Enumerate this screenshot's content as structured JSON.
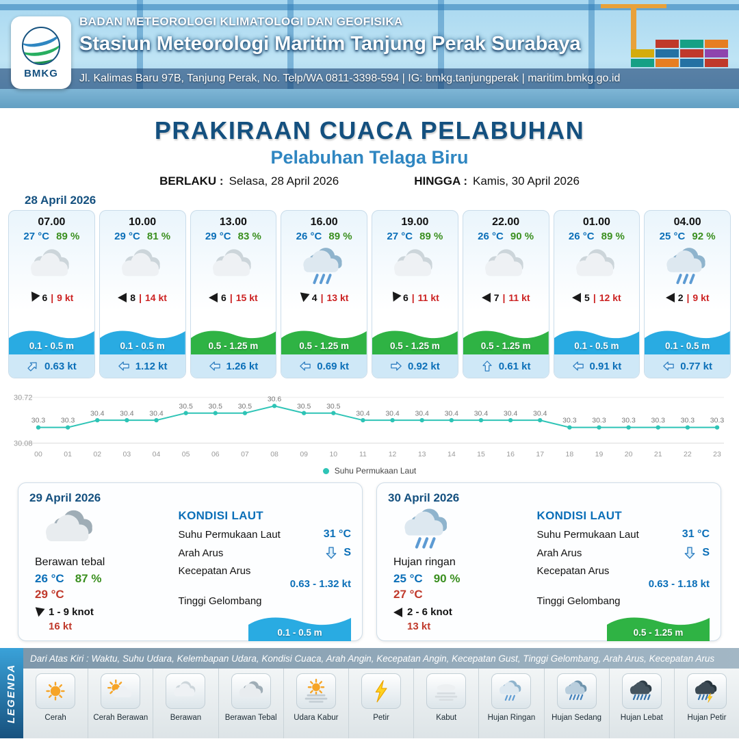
{
  "header": {
    "logo_label": "BMKG",
    "org": "BADAN METEOROLOGI KLIMATOLOGI DAN GEOFISIKA",
    "station": "Stasiun Meteorologi Maritim Tanjung Perak Surabaya",
    "address": "Jl. Kalimas Baru 97B, Tanjung Perak, No. Telp/WA 0811-3398-594 | IG: bmkg.tanjungperak | maritim.bmkg.go.id"
  },
  "title": {
    "main": "PRAKIRAAN CUACA PELABUHAN",
    "port": "Pelabuhan Telaga Biru",
    "berlaku_label": "BERLAKU :",
    "berlaku_value": "Selasa, 28 April 2026",
    "hingga_label": "HINGGA :",
    "hingga_value": "Kamis, 30 April 2026"
  },
  "labels": {
    "wind_sep": "|"
  },
  "colors": {
    "temp_blue": "#0b6fb8",
    "humidity_green": "#3a8f1f",
    "alert_red": "#c0392b",
    "wave_blue": "#29abe2",
    "wave_green": "#2fb344",
    "sst_line": "#2ec4b6"
  },
  "forecast": {
    "date_label": "28 April 2026",
    "cards": [
      {
        "time": "07.00",
        "temp": "27 °C",
        "humidity": "89 %",
        "icon": "berawan",
        "wind_dir_deg": 115,
        "wind_num": "6",
        "wind_kt": "9 kt",
        "wave": "0.1 - 0.5 m",
        "wave_type": "blue",
        "cur_dir_deg": 45,
        "cur": "0.63 kt"
      },
      {
        "time": "10.00",
        "temp": "29 °C",
        "humidity": "81 %",
        "icon": "berawan",
        "wind_dir_deg": 180,
        "wind_num": "8",
        "wind_kt": "14 kt",
        "wave": "0.1 - 0.5 m",
        "wave_type": "blue",
        "cur_dir_deg": 270,
        "cur": "1.12 kt"
      },
      {
        "time": "13.00",
        "temp": "29 °C",
        "humidity": "83 %",
        "icon": "berawan",
        "wind_dir_deg": 180,
        "wind_num": "6",
        "wind_kt": "15 kt",
        "wave": "0.5 - 1.25 m",
        "wave_type": "green",
        "cur_dir_deg": 270,
        "cur": "1.26 kt"
      },
      {
        "time": "16.00",
        "temp": "26 °C",
        "humidity": "89 %",
        "icon": "hujan-ringan",
        "wind_dir_deg": 100,
        "wind_num": "4",
        "wind_kt": "13 kt",
        "wave": "0.5 - 1.25 m",
        "wave_type": "green",
        "cur_dir_deg": 270,
        "cur": "0.69 kt"
      },
      {
        "time": "19.00",
        "temp": "27 °C",
        "humidity": "89 %",
        "icon": "berawan",
        "wind_dir_deg": 115,
        "wind_num": "6",
        "wind_kt": "11 kt",
        "wave": "0.5 - 1.25 m",
        "wave_type": "green",
        "cur_dir_deg": 90,
        "cur": "0.92 kt"
      },
      {
        "time": "22.00",
        "temp": "26 °C",
        "humidity": "90 %",
        "icon": "berawan",
        "wind_dir_deg": 180,
        "wind_num": "7",
        "wind_kt": "11 kt",
        "wave": "0.5 - 1.25 m",
        "wave_type": "green",
        "cur_dir_deg": 0,
        "cur": "0.61 kt"
      },
      {
        "time": "01.00",
        "temp": "26 °C",
        "humidity": "89 %",
        "icon": "berawan",
        "wind_dir_deg": 180,
        "wind_num": "5",
        "wind_kt": "12 kt",
        "wave": "0.1 - 0.5 m",
        "wave_type": "blue",
        "cur_dir_deg": 270,
        "cur": "0.91 kt"
      },
      {
        "time": "04.00",
        "temp": "25 °C",
        "humidity": "92 %",
        "icon": "hujan-ringan",
        "wind_dir_deg": 180,
        "wind_num": "2",
        "wind_kt": "9 kt",
        "wave": "0.1 - 0.5 m",
        "wave_type": "blue",
        "cur_dir_deg": 270,
        "cur": "0.77 kt"
      }
    ]
  },
  "chart_data": {
    "type": "line",
    "title": "Suhu Permukaan Laut",
    "x_labels": [
      "00",
      "01",
      "02",
      "03",
      "04",
      "05",
      "06",
      "07",
      "08",
      "09",
      "10",
      "11",
      "12",
      "13",
      "14",
      "15",
      "16",
      "17",
      "18",
      "19",
      "20",
      "21",
      "22",
      "23"
    ],
    "series": [
      {
        "name": "Suhu Permukaan Laut",
        "values": [
          30.3,
          30.3,
          30.4,
          30.4,
          30.4,
          30.5,
          30.5,
          30.5,
          30.6,
          30.5,
          30.5,
          30.4,
          30.4,
          30.4,
          30.4,
          30.4,
          30.4,
          30.4,
          30.3,
          30.3,
          30.3,
          30.3,
          30.3,
          30.3
        ]
      }
    ],
    "ylim": [
      30.08,
      30.72
    ],
    "color": "#2ec4b6",
    "legend_position": "bottom",
    "legend_label": "Suhu Permukaan Laut"
  },
  "sea_labels": {
    "title": "KONDISI LAUT",
    "sst": "Suhu Permukaan Laut",
    "arah": "Arah Arus",
    "kecepatan": "Kecepatan Arus",
    "tinggi": "Tinggi Gelombang"
  },
  "days": [
    {
      "date": "29 April 2026",
      "icon": "berawan-tebal",
      "condition": "Berawan tebal",
      "temp": "26 °C",
      "humidity": "87 %",
      "temp2": "29 °C",
      "wind_dir_deg": 100,
      "wind_range": "1 - 9 knot",
      "gust": "16 kt",
      "sst": "31 °C",
      "current_dir": "S",
      "current_dir_deg": 180,
      "current_speed": "0.63 - 1.32 kt",
      "wave": "0.1 - 0.5 m",
      "wave_type": "blue"
    },
    {
      "date": "30 April 2026",
      "icon": "hujan-ringan",
      "condition": "Hujan ringan",
      "temp": "25 °C",
      "humidity": "90 %",
      "temp2": "27 °C",
      "wind_dir_deg": 180,
      "wind_range": "2 - 6 knot",
      "gust": "13 kt",
      "sst": "31 °C",
      "current_dir": "S",
      "current_dir_deg": 180,
      "current_speed": "0.63 - 1.18 kt",
      "wave": "0.5 - 1.25 m",
      "wave_type": "green"
    }
  ],
  "legend": {
    "side": "LEGENDA",
    "note": "Dari Atas Kiri : Waktu, Suhu Udara, Kelembapan Udara, Kondisi Cuaca, Arah Angin, Kecepatan Angin, Kecepatan Gust, Tinggi Gelombang, Arah Arus, Kecepatan Arus",
    "items": [
      {
        "label": "Cerah",
        "icon": "cerah"
      },
      {
        "label": "Cerah Berawan",
        "icon": "cerah-berawan"
      },
      {
        "label": "Berawan",
        "icon": "berawan"
      },
      {
        "label": "Berawan Tebal",
        "icon": "berawan-tebal"
      },
      {
        "label": "Udara Kabur",
        "icon": "udara-kabur"
      },
      {
        "label": "Petir",
        "icon": "petir"
      },
      {
        "label": "Kabut",
        "icon": "kabut"
      },
      {
        "label": "Hujan Ringan",
        "icon": "hujan-ringan"
      },
      {
        "label": "Hujan Sedang",
        "icon": "hujan-sedang"
      },
      {
        "label": "Hujan Lebat",
        "icon": "hujan-lebat"
      },
      {
        "label": "Hujan Petir",
        "icon": "hujan-petir"
      }
    ]
  }
}
